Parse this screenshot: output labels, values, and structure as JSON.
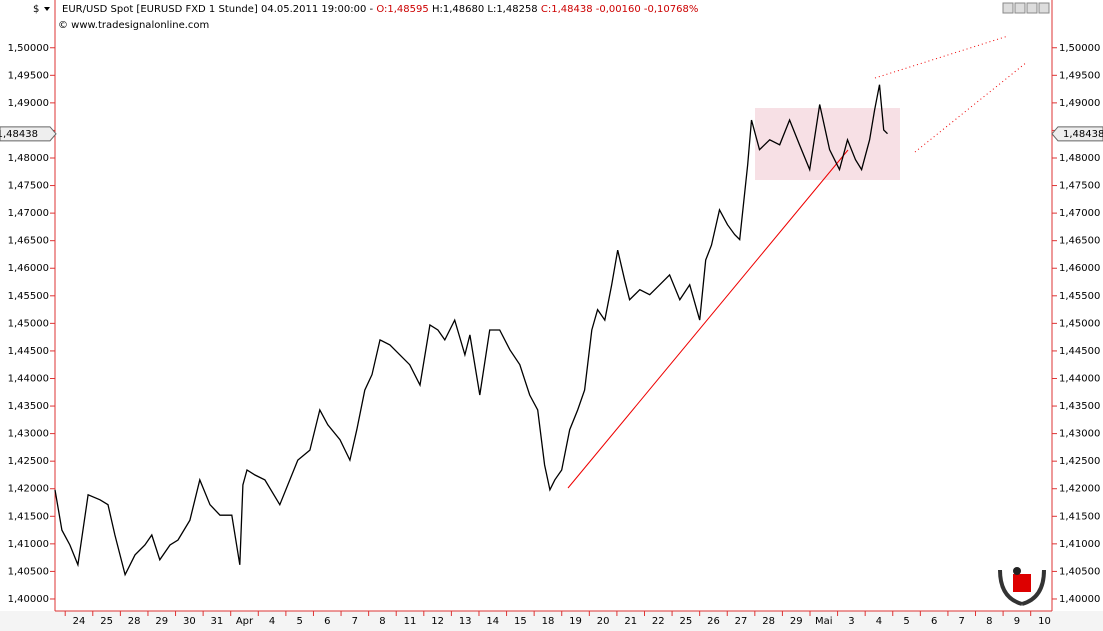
{
  "header": {
    "currency": "$",
    "instrument": "EUR/USD Spot [EURUSD FXD  1 Stunde] 04.05.2011 19:00:00 -",
    "open": "O:1,48595",
    "high": "H:1,48680",
    "low": "L:1,48258",
    "close": "C:1,48438 -0,00160 -0,10768%",
    "source": "© www.tradesignalonline.com"
  },
  "chart_data": {
    "type": "line",
    "color": "#000000",
    "x": [
      -0.87,
      -0.62,
      -0.33,
      -0.04,
      0.33,
      0.76,
      1.05,
      1.3,
      1.67,
      2.03,
      2.39,
      2.64,
      2.93,
      3.3,
      3.59,
      4.02,
      4.38,
      4.75,
      5.11,
      5.54,
      5.83,
      5.94,
      6.09,
      6.38,
      6.74,
      7.28,
      7.93,
      8.37,
      8.73,
      9.02,
      9.46,
      9.82,
      10.07,
      10.36,
      10.62,
      10.91,
      11.27,
      11.63,
      11.99,
      12.36,
      12.72,
      13.01,
      13.26,
      13.62,
      13.99,
      14.17,
      14.53,
      14.89,
      15.25,
      15.62,
      15.98,
      16.34,
      16.63,
      16.88,
      17.07,
      17.25,
      17.5,
      17.79,
      18.08,
      18.33,
      18.59,
      18.8,
      19.06,
      19.31,
      19.53,
      19.78,
      19.96,
      20.33,
      20.69,
      21.05,
      21.41,
      21.78,
      22.14,
      22.5,
      22.72,
      22.93,
      23.22,
      23.51,
      23.77,
      23.95,
      24.24,
      24.38,
      24.67,
      25.04,
      25.4,
      25.76,
      26.12,
      26.49,
      26.85,
      27.21,
      27.57,
      27.86,
      28.15,
      28.37,
      28.66,
      28.84,
      29.02,
      29.17,
      29.31
    ],
    "values": [
      1.4198,
      1.4125,
      1.4098,
      1.4062,
      1.4189,
      1.418,
      1.4171,
      1.4116,
      1.4044,
      1.408,
      1.4098,
      1.4116,
      1.4071,
      1.4098,
      1.4107,
      1.4143,
      1.4216,
      1.4171,
      1.4152,
      1.4152,
      1.4062,
      1.4207,
      1.4234,
      1.4225,
      1.4216,
      1.4171,
      1.4252,
      1.427,
      1.4343,
      1.4316,
      1.4289,
      1.4252,
      1.4307,
      1.4379,
      1.4407,
      1.447,
      1.4461,
      1.4443,
      1.4425,
      1.4388,
      1.4497,
      1.4488,
      1.447,
      1.4506,
      1.4443,
      1.4479,
      1.437,
      1.4488,
      1.4488,
      1.4452,
      1.4425,
      1.437,
      1.4343,
      1.4243,
      1.4198,
      1.4216,
      1.4234,
      1.4307,
      1.4343,
      1.4379,
      1.4488,
      1.4525,
      1.4506,
      1.457,
      1.4633,
      1.4579,
      1.4543,
      1.4561,
      1.4552,
      1.457,
      1.4588,
      1.4543,
      1.457,
      1.4506,
      1.4615,
      1.4642,
      1.4706,
      1.4679,
      1.4661,
      1.4652,
      1.4788,
      1.4869,
      1.4815,
      1.4833,
      1.4824,
      1.4869,
      1.4824,
      1.4779,
      1.4897,
      1.4815,
      1.4779,
      1.4833,
      1.4797,
      1.4779,
      1.4833,
      1.4887,
      1.4933,
      1.4851,
      1.4844
    ],
    "xlim": [
      -0.87,
      35.2
    ],
    "xticks": [
      {
        "value": 0,
        "label": "24"
      },
      {
        "value": 1,
        "label": "25"
      },
      {
        "value": 2,
        "label": "28"
      },
      {
        "value": 3,
        "label": "29"
      },
      {
        "value": 4,
        "label": "30"
      },
      {
        "value": 5,
        "label": "31"
      },
      {
        "value": 6,
        "label": "Apr"
      },
      {
        "value": 7,
        "label": "4"
      },
      {
        "value": 8,
        "label": "5"
      },
      {
        "value": 9,
        "label": "6"
      },
      {
        "value": 10,
        "label": "7"
      },
      {
        "value": 11,
        "label": "8"
      },
      {
        "value": 12,
        "label": "11"
      },
      {
        "value": 13,
        "label": "12"
      },
      {
        "value": 14,
        "label": "13"
      },
      {
        "value": 15,
        "label": "14"
      },
      {
        "value": 16,
        "label": "15"
      },
      {
        "value": 17,
        "label": "18"
      },
      {
        "value": 18,
        "label": "19"
      },
      {
        "value": 19,
        "label": "20"
      },
      {
        "value": 20,
        "label": "21"
      },
      {
        "value": 21,
        "label": "22"
      },
      {
        "value": 22,
        "label": "25"
      },
      {
        "value": 23,
        "label": "26"
      },
      {
        "value": 24,
        "label": "27"
      },
      {
        "value": 25,
        "label": "28"
      },
      {
        "value": 26,
        "label": "29"
      },
      {
        "value": 27,
        "label": "Mai"
      },
      {
        "value": 28,
        "label": "3"
      },
      {
        "value": 29,
        "label": "4"
      },
      {
        "value": 30,
        "label": "5"
      },
      {
        "value": 31,
        "label": "6"
      },
      {
        "value": 32,
        "label": "7"
      },
      {
        "value": 33,
        "label": "8"
      },
      {
        "value": 34,
        "label": "9"
      },
      {
        "value": 35,
        "label": "10"
      }
    ],
    "ylim": [
      1.398,
      1.5083
    ],
    "yticks": [
      {
        "value": 1.4,
        "label": "1,40000"
      },
      {
        "value": 1.405,
        "label": "1,40500"
      },
      {
        "value": 1.41,
        "label": "1,41000"
      },
      {
        "value": 1.415,
        "label": "1,41500"
      },
      {
        "value": 1.42,
        "label": "1,42000"
      },
      {
        "value": 1.425,
        "label": "1,42500"
      },
      {
        "value": 1.43,
        "label": "1,43000"
      },
      {
        "value": 1.435,
        "label": "1,43500"
      },
      {
        "value": 1.44,
        "label": "1,44000"
      },
      {
        "value": 1.445,
        "label": "1,44500"
      },
      {
        "value": 1.45,
        "label": "1,45000"
      },
      {
        "value": 1.455,
        "label": "1,45500"
      },
      {
        "value": 1.46,
        "label": "1,46000"
      },
      {
        "value": 1.465,
        "label": "1,46500"
      },
      {
        "value": 1.47,
        "label": "1,47000"
      },
      {
        "value": 1.475,
        "label": "1,47500"
      },
      {
        "value": 1.48,
        "label": "1,48000"
      },
      {
        "value": 1.485,
        "label": "1,48500"
      },
      {
        "value": 1.49,
        "label": "1,49000"
      },
      {
        "value": 1.495,
        "label": "1,49500"
      },
      {
        "value": 1.5,
        "label": "1,50000"
      }
    ],
    "last_price": {
      "value": 1.48438,
      "label": "1,48438"
    }
  }
}
